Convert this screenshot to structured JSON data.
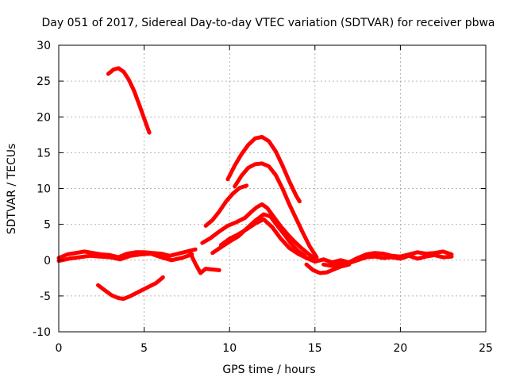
{
  "chart_data": {
    "type": "line",
    "title": "Day 051 of 2017, Sidereal Day-to-day VTEC variation (SDTVAR) for receiver pbwa",
    "xlabel": "GPS time / hours",
    "ylabel": "SDTVAR / TECUs",
    "xlim": [
      0,
      25
    ],
    "ylim": [
      -10,
      30
    ],
    "xticks": [
      0,
      5,
      10,
      15,
      20,
      25
    ],
    "yticks": [
      -10,
      -5,
      0,
      5,
      10,
      15,
      20,
      25,
      30
    ],
    "xtick_labels": [
      "0",
      "5",
      "10",
      "15",
      "20",
      "25"
    ],
    "ytick_labels": [
      "-10",
      "-5",
      "0",
      "5",
      "10",
      "15",
      "20",
      "25",
      "30"
    ],
    "grid": true,
    "color": "#ff0000",
    "series": [
      {
        "name": "arc-high-early",
        "x": [
          2.9,
          3.2,
          3.5,
          3.8,
          4.1,
          4.4,
          4.7,
          5.0,
          5.3
        ],
        "y": [
          26.0,
          26.6,
          26.8,
          26.3,
          25.2,
          23.7,
          21.8,
          19.8,
          17.8
        ]
      },
      {
        "name": "arc-low-early",
        "x": [
          2.3,
          2.7,
          3.1,
          3.5,
          3.8,
          4.2,
          4.7,
          5.2,
          5.7,
          6.1
        ],
        "y": [
          -3.5,
          -4.2,
          -4.9,
          -5.3,
          -5.4,
          -5.0,
          -4.4,
          -3.8,
          -3.2,
          -2.4
        ]
      },
      {
        "name": "baseline-early",
        "x": [
          0.0,
          0.5,
          1.0,
          1.5,
          2.0,
          2.5,
          3.0,
          3.5,
          4.0,
          4.5,
          5.0,
          5.5,
          6.0,
          6.5,
          7.0,
          7.5,
          8.0
        ],
        "y": [
          0.3,
          0.8,
          1.0,
          1.2,
          1.0,
          0.8,
          0.7,
          0.4,
          0.9,
          1.1,
          1.1,
          1.0,
          0.9,
          0.6,
          0.9,
          1.2,
          1.5
        ]
      },
      {
        "name": "baseline-early-lower",
        "x": [
          0.0,
          0.6,
          1.2,
          1.8,
          2.4,
          3.0,
          3.6,
          4.2,
          4.8,
          5.4,
          6.0,
          6.6,
          7.2,
          7.8
        ],
        "y": [
          -0.1,
          0.2,
          0.4,
          0.6,
          0.5,
          0.4,
          0.1,
          0.6,
          0.8,
          0.9,
          0.4,
          0.0,
          0.3,
          0.8
        ]
      },
      {
        "name": "arc-peak-17",
        "x": [
          9.9,
          10.3,
          10.7,
          11.1,
          11.5,
          11.9,
          12.3,
          12.7,
          13.1,
          13.5,
          13.9,
          14.1
        ],
        "y": [
          11.3,
          13.2,
          14.8,
          16.1,
          17.0,
          17.2,
          16.6,
          15.2,
          13.2,
          11.0,
          9.0,
          8.2
        ]
      },
      {
        "name": "arc-peak-13",
        "x": [
          10.3,
          10.7,
          11.1,
          11.5,
          11.9,
          12.3,
          12.7,
          13.1,
          13.5,
          13.9,
          14.3,
          14.7,
          15.1
        ],
        "y": [
          10.3,
          11.8,
          12.9,
          13.4,
          13.5,
          13.1,
          11.9,
          10.0,
          7.8,
          5.8,
          3.8,
          1.9,
          0.4
        ]
      },
      {
        "name": "arc-rise-to-10",
        "x": [
          8.6,
          9.0,
          9.4,
          9.8,
          10.2,
          10.6,
          11.0
        ],
        "y": [
          4.8,
          5.6,
          6.8,
          8.2,
          9.3,
          10.1,
          10.4
        ]
      },
      {
        "name": "arc-peak-8",
        "x": [
          8.4,
          8.9,
          9.4,
          9.9,
          10.4,
          10.9,
          11.3,
          11.6,
          11.9,
          12.2,
          12.6,
          13.0,
          13.4,
          13.8,
          14.2,
          14.6,
          15.0
        ],
        "y": [
          2.4,
          3.1,
          4.0,
          4.8,
          5.3,
          5.9,
          6.8,
          7.4,
          7.8,
          7.3,
          6.0,
          4.7,
          3.6,
          2.6,
          1.7,
          0.9,
          0.2
        ]
      },
      {
        "name": "arc-peak-6",
        "x": [
          9.0,
          9.5,
          10.0,
          10.5,
          11.0,
          11.5,
          12.0,
          12.4,
          12.8,
          13.2,
          13.6,
          14.0,
          14.4
        ],
        "y": [
          1.0,
          1.8,
          2.6,
          3.3,
          4.4,
          5.5,
          6.4,
          6.1,
          4.8,
          3.6,
          2.3,
          1.3,
          0.6
        ]
      },
      {
        "name": "low-midday-ramp",
        "x": [
          9.5,
          10.0,
          10.5,
          11.0,
          11.5,
          12.0,
          12.5,
          13.0,
          13.5,
          14.0,
          14.5,
          15.0
        ],
        "y": [
          2.1,
          3.0,
          3.6,
          4.3,
          5.1,
          5.7,
          4.6,
          3.0,
          1.7,
          0.9,
          0.3,
          0.0
        ]
      },
      {
        "name": "dip-near-8",
        "x": [
          7.7,
          8.0,
          8.3,
          8.6,
          9.0,
          9.4
        ],
        "y": [
          1.0,
          -0.5,
          -1.8,
          -1.2,
          -1.3,
          -1.4
        ]
      },
      {
        "name": "baseline-late",
        "x": [
          14.5,
          15.0,
          15.5,
          16.0,
          16.5,
          17.0,
          17.5,
          18.0,
          18.5,
          19.0,
          19.5,
          20.0,
          20.5,
          21.0,
          21.5,
          22.0,
          22.5,
          23.0
        ],
        "y": [
          0.3,
          -0.2,
          0.1,
          -0.3,
          0.0,
          -0.3,
          0.3,
          0.8,
          1.0,
          0.9,
          0.6,
          0.5,
          0.8,
          1.1,
          0.9,
          1.0,
          1.2,
          0.8
        ]
      },
      {
        "name": "dip-late",
        "x": [
          14.5,
          14.9,
          15.3,
          15.7,
          16.1,
          16.5,
          17.0
        ],
        "y": [
          -0.6,
          -1.4,
          -1.8,
          -1.7,
          -1.3,
          -0.9,
          -0.6
        ]
      },
      {
        "name": "baseline-late-lower",
        "x": [
          15.5,
          16.0,
          16.5,
          17.0,
          17.5,
          18.0,
          18.5,
          19.0,
          19.5,
          20.0,
          20.5,
          21.0,
          21.5,
          22.0,
          22.5,
          23.0
        ],
        "y": [
          -0.6,
          -0.8,
          -0.5,
          -0.4,
          0.0,
          0.4,
          0.5,
          0.3,
          0.4,
          0.2,
          0.6,
          0.2,
          0.5,
          0.7,
          0.4,
          0.5
        ]
      }
    ]
  }
}
